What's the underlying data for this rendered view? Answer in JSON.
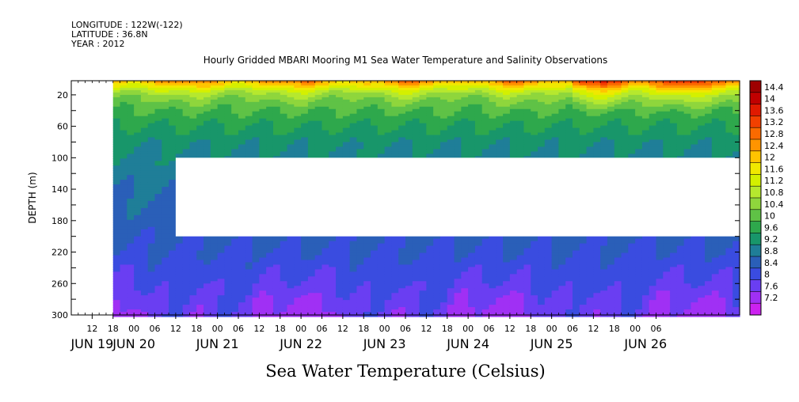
{
  "header": {
    "longitude": "LONGITUDE : 122W(-122)",
    "latitude": "LATITUDE : 36.8N",
    "year": "YEAR : 2012",
    "title": "Hourly Gridded MBARI Mooring M1 Sea Water Temperature and Salinity Observations"
  },
  "chart_data": {
    "type": "heatmap",
    "title": "Hourly Gridded MBARI Mooring M1 Sea Water Temperature and Salinity Observations",
    "xlabel": "Sea Water Temperature (Celsius)",
    "ylabel": "DEPTH (m)",
    "x_hour_labels": [
      "12",
      "18",
      "00",
      "06",
      "12",
      "18",
      "00",
      "06",
      "12",
      "18",
      "00",
      "06",
      "12",
      "18",
      "00",
      "06",
      "12",
      "18",
      "00",
      "06",
      "12",
      "18",
      "00",
      "06",
      "12",
      "18",
      "00",
      "06"
    ],
    "x_day_labels": [
      "JUN 19",
      "JUN 20",
      "JUN 21",
      "JUN 22",
      "JUN 23",
      "JUN 24",
      "JUN 25",
      "JUN 26"
    ],
    "y_ticks": [
      20,
      60,
      100,
      140,
      180,
      220,
      260,
      300
    ],
    "ylim": [
      300,
      2
    ],
    "xlim_hours": [
      6,
      198
    ],
    "data_start_hour": 18,
    "data_gap": {
      "start_hour": 36,
      "depth_from": 100,
      "depth_to": 200
    },
    "colorbar": {
      "levels": [
        "14.4",
        "14",
        "13.6",
        "13.2",
        "12.8",
        "12.4",
        "12",
        "11.6",
        "11.2",
        "10.8",
        "10.4",
        "10",
        "9.6",
        "9.2",
        "8.8",
        "8.4",
        "8",
        "7.6",
        "7.2"
      ],
      "colors": [
        "#9e0000",
        "#c00000",
        "#e01a00",
        "#f24000",
        "#fa6a00",
        "#ff9400",
        "#ffc400",
        "#f0e800",
        "#d4f000",
        "#b6e82e",
        "#8fd63c",
        "#5fc246",
        "#2ea84c",
        "#18966a",
        "#1f7e98",
        "#2a5fb8",
        "#3a4ce0",
        "#6a3ef2",
        "#a030f4",
        "#cc22f0"
      ]
    },
    "profile": {
      "depths": [
        2,
        8,
        14,
        20,
        30,
        40,
        50,
        60,
        80,
        100,
        150,
        200,
        230,
        260,
        280,
        300
      ],
      "temps": [
        12.6,
        11.9,
        11.2,
        10.7,
        10.3,
        10.0,
        9.8,
        9.6,
        9.3,
        9.1,
        8.8,
        8.5,
        8.3,
        8.15,
        8.0,
        7.9
      ]
    }
  }
}
